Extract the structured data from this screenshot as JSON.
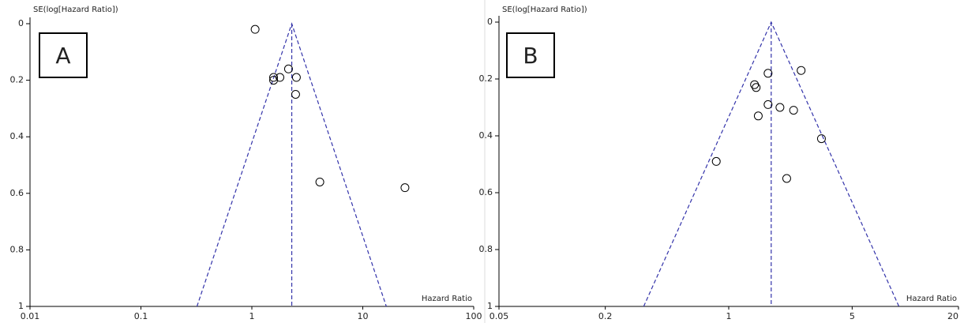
{
  "chart_data": [
    {
      "type": "scatter",
      "panel_label": "A",
      "y_label": "SE(log[Hazard Ratio])",
      "x_label": "Hazard Ratio",
      "xscale": "log",
      "xlim": [
        0.01,
        100
      ],
      "xticks": [
        0.01,
        0.1,
        1,
        10,
        100
      ],
      "ylim": [
        0,
        1
      ],
      "yticks": [
        0,
        0.2,
        0.4,
        0.6,
        0.8,
        1
      ],
      "y_reversed": true,
      "points": {
        "color": "#000000",
        "x": [
          1.07,
          2.14,
          1.57,
          1.57,
          1.79,
          2.52,
          2.48,
          4.1,
          24
        ],
        "y": [
          0.02,
          0.16,
          0.19,
          0.2,
          0.19,
          0.19,
          0.25,
          0.56,
          0.58
        ]
      },
      "funnel": {
        "color": "#3333aa",
        "x": [
          0.32,
          2.29,
          16.3
        ],
        "y": [
          1,
          0,
          1
        ]
      },
      "pooled": {
        "color": "#3333aa",
        "x": [
          2.29,
          2.29
        ],
        "y": [
          0,
          1
        ]
      }
    },
    {
      "type": "scatter",
      "panel_label": "B",
      "y_label": "SE(log[Hazard Ratio])",
      "x_label": "Hazard Ratio",
      "xscale": "log",
      "xlim": [
        0.05,
        20
      ],
      "xticks": [
        0.05,
        0.2,
        1,
        5,
        20
      ],
      "ylim": [
        0,
        1
      ],
      "yticks": [
        0,
        0.2,
        0.4,
        0.6,
        0.8,
        1
      ],
      "y_reversed": true,
      "points": {
        "color": "#000000",
        "x": [
          1.67,
          2.57,
          1.4,
          1.43,
          1.67,
          1.95,
          2.33,
          1.47,
          3.35,
          0.85,
          2.13
        ],
        "y": [
          0.18,
          0.17,
          0.22,
          0.23,
          0.29,
          0.3,
          0.31,
          0.33,
          0.41,
          0.49,
          0.55
        ]
      },
      "funnel": {
        "color": "#3333aa",
        "x": [
          0.33,
          1.74,
          9.2
        ],
        "y": [
          1,
          0,
          1
        ]
      },
      "pooled": {
        "color": "#3333aa",
        "x": [
          1.74,
          1.74
        ],
        "y": [
          0,
          1
        ]
      }
    }
  ]
}
